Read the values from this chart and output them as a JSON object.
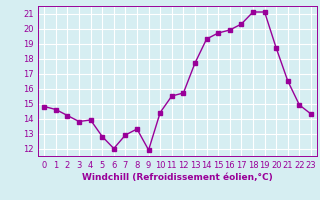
{
  "x": [
    0,
    1,
    2,
    3,
    4,
    5,
    6,
    7,
    8,
    9,
    10,
    11,
    12,
    13,
    14,
    15,
    16,
    17,
    18,
    19,
    20,
    21,
    22,
    23
  ],
  "y": [
    14.8,
    14.6,
    14.2,
    13.8,
    13.9,
    12.8,
    12.0,
    12.9,
    13.3,
    11.9,
    14.4,
    15.5,
    15.7,
    17.7,
    19.3,
    19.7,
    19.9,
    20.3,
    21.1,
    21.1,
    18.7,
    16.5,
    14.9,
    14.3
  ],
  "line_color": "#990099",
  "marker": "s",
  "marker_size": 2.5,
  "line_width": 1.0,
  "xlabel": "Windchill (Refroidissement éolien,°C)",
  "xlabel_fontsize": 6.5,
  "ylabel_ticks": [
    12,
    13,
    14,
    15,
    16,
    17,
    18,
    19,
    20,
    21
  ],
  "ylim": [
    11.5,
    21.5
  ],
  "xlim": [
    -0.5,
    23.5
  ],
  "background_color": "#d6eef2",
  "grid_color": "#ffffff",
  "tick_fontsize": 6.0,
  "figwidth": 3.2,
  "figheight": 2.0,
  "dpi": 100
}
